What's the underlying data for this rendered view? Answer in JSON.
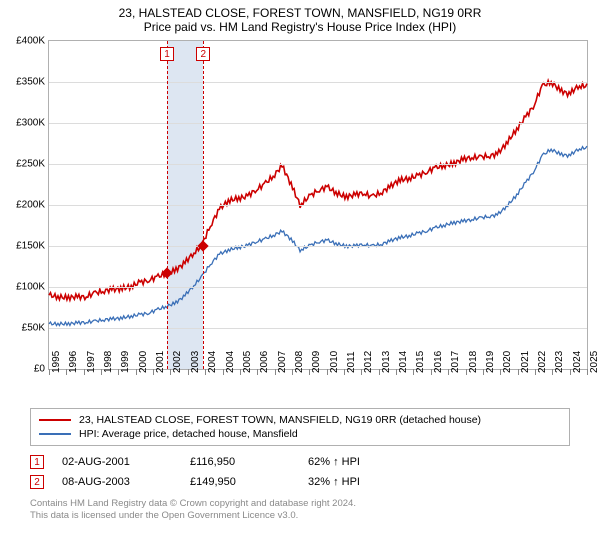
{
  "header": {
    "line1": "23, HALSTEAD CLOSE, FOREST TOWN, MANSFIELD, NG19 0RR",
    "line2": "Price paid vs. HM Land Registry's House Price Index (HPI)"
  },
  "chart": {
    "type": "line",
    "background_color": "#ffffff",
    "grid_color": "#dcdcdc",
    "border_color": "#b0b0b0",
    "shaded_color": "#dde6f2",
    "label_fontsize": 10,
    "x_range": [
      1995,
      2025
    ],
    "x_ticks": [
      1995,
      1996,
      1997,
      1998,
      1999,
      2000,
      2001,
      2002,
      2003,
      2004,
      2004,
      2005,
      2006,
      2007,
      2008,
      2009,
      2010,
      2011,
      2012,
      2013,
      2014,
      2015,
      2016,
      2017,
      2018,
      2019,
      2020,
      2021,
      2022,
      2023,
      2024,
      2025
    ],
    "y_range": [
      0,
      400000
    ],
    "y_ticks": [
      0,
      50000,
      100000,
      150000,
      200000,
      250000,
      300000,
      350000,
      400000
    ],
    "y_tick_labels": [
      "£0",
      "£50K",
      "£100K",
      "£150K",
      "£200K",
      "£250K",
      "£300K",
      "£350K",
      "£400K"
    ],
    "series": [
      {
        "name": "property",
        "label": "23, HALSTEAD CLOSE, FOREST TOWN, MANSFIELD, NG19 0RR (detached house)",
        "color": "#cc0000",
        "line_width": 1.6,
        "data": [
          [
            1995.0,
            90000
          ],
          [
            1995.5,
            88000
          ],
          [
            1996.0,
            87000
          ],
          [
            1996.5,
            88000
          ],
          [
            1997.0,
            88000
          ],
          [
            1997.5,
            92000
          ],
          [
            1998.0,
            95000
          ],
          [
            1998.5,
            97000
          ],
          [
            1999.0,
            98000
          ],
          [
            1999.5,
            100000
          ],
          [
            2000.0,
            105000
          ],
          [
            2000.5,
            108000
          ],
          [
            2001.0,
            112000
          ],
          [
            2001.5,
            116000
          ],
          [
            2002.0,
            120000
          ],
          [
            2002.5,
            128000
          ],
          [
            2003.0,
            140000
          ],
          [
            2003.5,
            150000
          ],
          [
            2004.0,
            175000
          ],
          [
            2004.5,
            195000
          ],
          [
            2005.0,
            205000
          ],
          [
            2005.5,
            208000
          ],
          [
            2006.0,
            210000
          ],
          [
            2006.5,
            218000
          ],
          [
            2007.0,
            225000
          ],
          [
            2007.5,
            235000
          ],
          [
            2008.0,
            248000
          ],
          [
            2008.5,
            225000
          ],
          [
            2009.0,
            200000
          ],
          [
            2009.5,
            210000
          ],
          [
            2010.0,
            218000
          ],
          [
            2010.5,
            222000
          ],
          [
            2011.0,
            215000
          ],
          [
            2011.5,
            210000
          ],
          [
            2012.0,
            212000
          ],
          [
            2012.5,
            215000
          ],
          [
            2013.0,
            210000
          ],
          [
            2013.5,
            215000
          ],
          [
            2014.0,
            222000
          ],
          [
            2014.5,
            230000
          ],
          [
            2015.0,
            232000
          ],
          [
            2015.5,
            235000
          ],
          [
            2016.0,
            240000
          ],
          [
            2016.5,
            245000
          ],
          [
            2017.0,
            248000
          ],
          [
            2017.5,
            250000
          ],
          [
            2018.0,
            255000
          ],
          [
            2018.5,
            258000
          ],
          [
            2019.0,
            258000
          ],
          [
            2019.5,
            260000
          ],
          [
            2020.0,
            262000
          ],
          [
            2020.5,
            275000
          ],
          [
            2021.0,
            290000
          ],
          [
            2021.5,
            305000
          ],
          [
            2022.0,
            320000
          ],
          [
            2022.5,
            345000
          ],
          [
            2023.0,
            350000
          ],
          [
            2023.5,
            340000
          ],
          [
            2024.0,
            335000
          ],
          [
            2024.5,
            345000
          ],
          [
            2025.0,
            345000
          ]
        ]
      },
      {
        "name": "hpi",
        "label": "HPI: Average price, detached house, Mansfield",
        "color": "#3a6fb7",
        "line_width": 1.3,
        "data": [
          [
            1995.0,
            55000
          ],
          [
            1995.5,
            55000
          ],
          [
            1996.0,
            55000
          ],
          [
            1996.5,
            56000
          ],
          [
            1997.0,
            57000
          ],
          [
            1997.5,
            58000
          ],
          [
            1998.0,
            60000
          ],
          [
            1998.5,
            61000
          ],
          [
            1999.0,
            62000
          ],
          [
            1999.5,
            64000
          ],
          [
            2000.0,
            66000
          ],
          [
            2000.5,
            68000
          ],
          [
            2001.0,
            72000
          ],
          [
            2001.5,
            76000
          ],
          [
            2002.0,
            80000
          ],
          [
            2002.5,
            88000
          ],
          [
            2003.0,
            100000
          ],
          [
            2003.5,
            112000
          ],
          [
            2004.0,
            128000
          ],
          [
            2004.5,
            140000
          ],
          [
            2005.0,
            145000
          ],
          [
            2005.5,
            148000
          ],
          [
            2006.0,
            150000
          ],
          [
            2006.5,
            155000
          ],
          [
            2007.0,
            158000
          ],
          [
            2007.5,
            163000
          ],
          [
            2008.0,
            168000
          ],
          [
            2008.5,
            158000
          ],
          [
            2009.0,
            145000
          ],
          [
            2009.5,
            150000
          ],
          [
            2010.0,
            155000
          ],
          [
            2010.5,
            157000
          ],
          [
            2011.0,
            153000
          ],
          [
            2011.5,
            150000
          ],
          [
            2012.0,
            150000
          ],
          [
            2012.5,
            152000
          ],
          [
            2013.0,
            150000
          ],
          [
            2013.5,
            152000
          ],
          [
            2014.0,
            156000
          ],
          [
            2014.5,
            160000
          ],
          [
            2015.0,
            162000
          ],
          [
            2015.5,
            165000
          ],
          [
            2016.0,
            168000
          ],
          [
            2016.5,
            172000
          ],
          [
            2017.0,
            175000
          ],
          [
            2017.5,
            178000
          ],
          [
            2018.0,
            180000
          ],
          [
            2018.5,
            182000
          ],
          [
            2019.0,
            184000
          ],
          [
            2019.5,
            186000
          ],
          [
            2020.0,
            188000
          ],
          [
            2020.5,
            198000
          ],
          [
            2021.0,
            210000
          ],
          [
            2021.5,
            225000
          ],
          [
            2022.0,
            240000
          ],
          [
            2022.5,
            260000
          ],
          [
            2023.0,
            268000
          ],
          [
            2023.5,
            262000
          ],
          [
            2024.0,
            260000
          ],
          [
            2024.5,
            268000
          ],
          [
            2025.0,
            270000
          ]
        ]
      }
    ],
    "markers": [
      {
        "key": "1",
        "x": 2001.58,
        "y": 116950
      },
      {
        "key": "2",
        "x": 2003.6,
        "y": 149950
      }
    ],
    "marker_style": {
      "shape": "diamond",
      "fill": "#cc0000",
      "size": 8
    },
    "vlines": {
      "color": "#cc0000",
      "dash": true
    },
    "shaded_region": [
      2001.58,
      2003.6
    ]
  },
  "legend": {
    "items": [
      {
        "series": "property",
        "color": "#cc0000",
        "label": "23, HALSTEAD CLOSE, FOREST TOWN, MANSFIELD, NG19 0RR (detached house)"
      },
      {
        "series": "hpi",
        "color": "#3a6fb7",
        "label": "HPI: Average price, detached house, Mansfield"
      }
    ]
  },
  "events": [
    {
      "key": "1",
      "date": "02-AUG-2001",
      "price": "£116,950",
      "pct": "62% ↑ HPI"
    },
    {
      "key": "2",
      "date": "08-AUG-2003",
      "price": "£149,950",
      "pct": "32% ↑ HPI"
    }
  ],
  "footer": {
    "line1": "Contains HM Land Registry data © Crown copyright and database right 2024.",
    "line2": "This data is licensed under the Open Government Licence v3.0."
  }
}
